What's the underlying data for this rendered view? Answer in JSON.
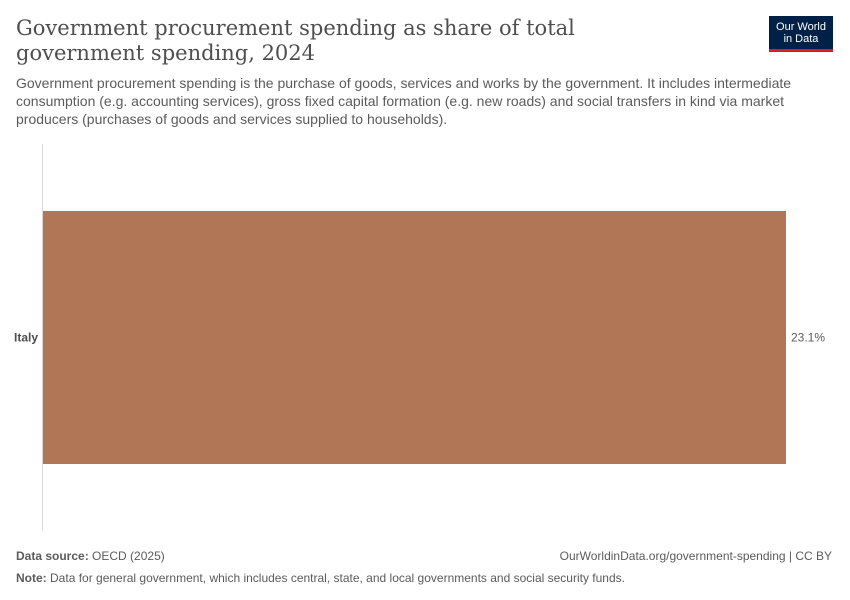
{
  "header": {
    "title": "Government procurement spending as share of total government spending, 2024",
    "subtitle": "Government procurement spending is the purchase of goods, services and works by the government. It includes intermediate consumption (e.g. accounting services), gross fixed capital formation (e.g. new roads) and social transfers in kind via market producers (purchases of goods and services supplied to households).",
    "logo_line1": "Our World",
    "logo_line2": "in Data"
  },
  "colors": {
    "bar": "#b07656",
    "axis": "#d8d8d8",
    "logo_bg": "#002147",
    "logo_accent": "#ce261e"
  },
  "chart_data": {
    "type": "bar",
    "orientation": "horizontal",
    "categories": [
      "Italy"
    ],
    "values": [
      23.1
    ],
    "value_labels": [
      "23.1%"
    ],
    "unit": "%",
    "xlim": [
      0,
      23.1
    ]
  },
  "footer": {
    "source_label": "Data source:",
    "source_text": "OECD (2025)",
    "url_text": "OurWorldinData.org/government-spending | CC BY",
    "note_label": "Note:",
    "note_text": "Data for general government, which includes central, state, and local governments and social security funds."
  }
}
